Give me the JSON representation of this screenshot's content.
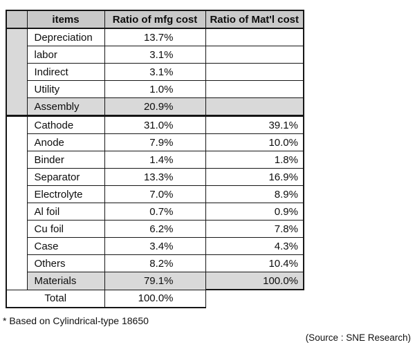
{
  "chart_data": {
    "type": "table",
    "columns": [
      "items",
      "Ratio of mfg cost",
      "Ratio of Mat'l cost"
    ],
    "groups": [
      {
        "name": "manufacturing-cost-group",
        "shaded": true,
        "rows": [
          {
            "item": "Depreciation",
            "mfg": "13.7%",
            "matl": "",
            "highlight": false
          },
          {
            "item": "labor",
            "mfg": "3.1%",
            "matl": "",
            "highlight": false
          },
          {
            "item": "Indirect",
            "mfg": "3.1%",
            "matl": "",
            "highlight": false
          },
          {
            "item": "Utility",
            "mfg": "1.0%",
            "matl": "",
            "highlight": false
          },
          {
            "item": "Assembly",
            "mfg": "20.9%",
            "matl": "",
            "highlight": true
          }
        ]
      },
      {
        "name": "material-cost-group",
        "shaded": false,
        "rows": [
          {
            "item": "Cathode",
            "mfg": "31.0%",
            "matl": "39.1%",
            "highlight": false
          },
          {
            "item": "Anode",
            "mfg": "7.9%",
            "matl": "10.0%",
            "highlight": false
          },
          {
            "item": "Binder",
            "mfg": "1.4%",
            "matl": "1.8%",
            "highlight": false
          },
          {
            "item": "Separator",
            "mfg": "13.3%",
            "matl": "16.9%",
            "highlight": false
          },
          {
            "item": "Electrolyte",
            "mfg": "7.0%",
            "matl": "8.9%",
            "highlight": false
          },
          {
            "item": "Al foil",
            "mfg": "0.7%",
            "matl": "0.9%",
            "highlight": false
          },
          {
            "item": "Cu foil",
            "mfg": "6.2%",
            "matl": "7.8%",
            "highlight": false
          },
          {
            "item": "Case",
            "mfg": "3.4%",
            "matl": "4.3%",
            "highlight": false
          },
          {
            "item": "Others",
            "mfg": "8.2%",
            "matl": "10.4%",
            "highlight": false
          },
          {
            "item": "Materials",
            "mfg": "79.1%",
            "matl": "100.0%",
            "highlight": true
          }
        ]
      }
    ],
    "total": {
      "label": "Total",
      "mfg": "100.0%"
    }
  },
  "footnote": "* Based on Cylindrical-type 18650",
  "source": "(Source : SNE Research)"
}
